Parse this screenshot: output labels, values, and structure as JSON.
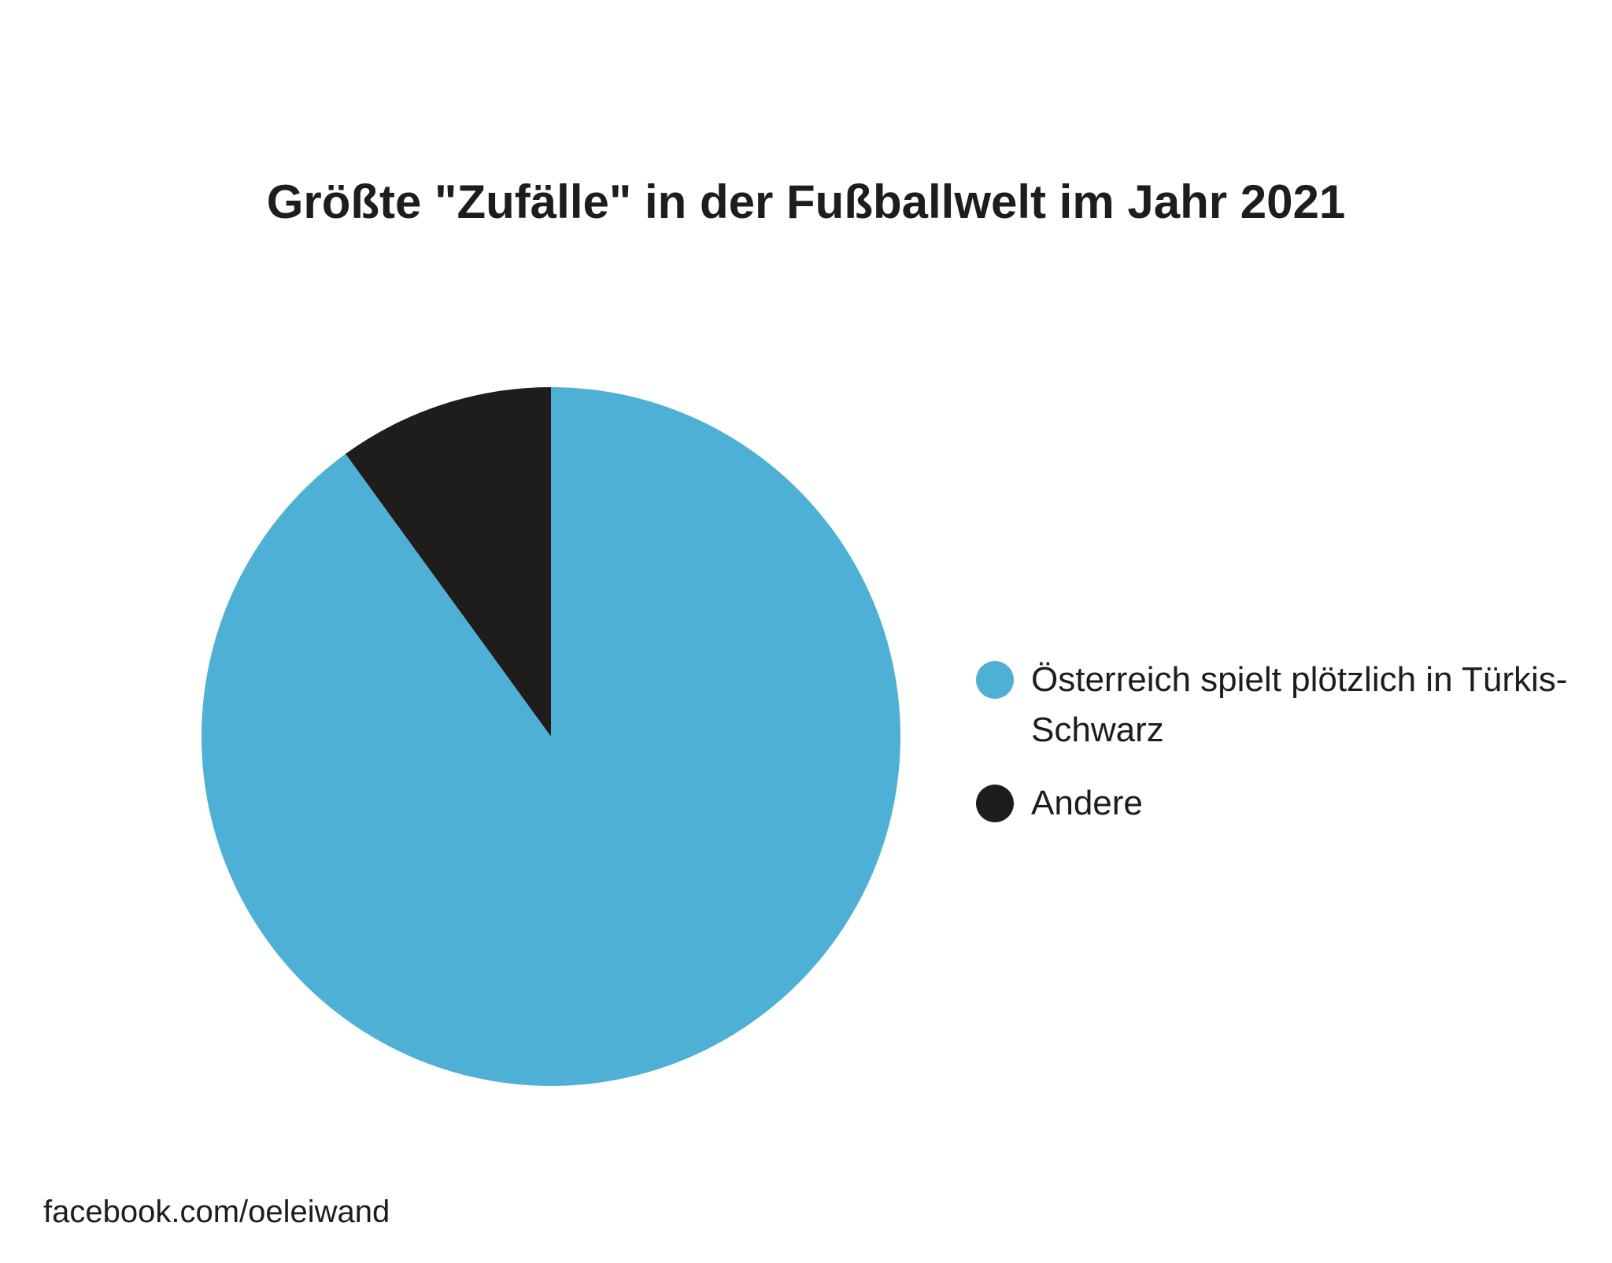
{
  "chart_data": {
    "type": "pie",
    "title": "Größte \"Zufälle\" in der Fußballwelt im Jahr 2021",
    "categories": [
      "Österreich spielt plötzlich in Türkis-Schwarz",
      "Andere"
    ],
    "values": [
      90,
      10
    ],
    "colors": [
      "#4fb0d6",
      "#1f1c1c"
    ],
    "legend": "right",
    "source": "facebook.com/oeleiwand"
  }
}
